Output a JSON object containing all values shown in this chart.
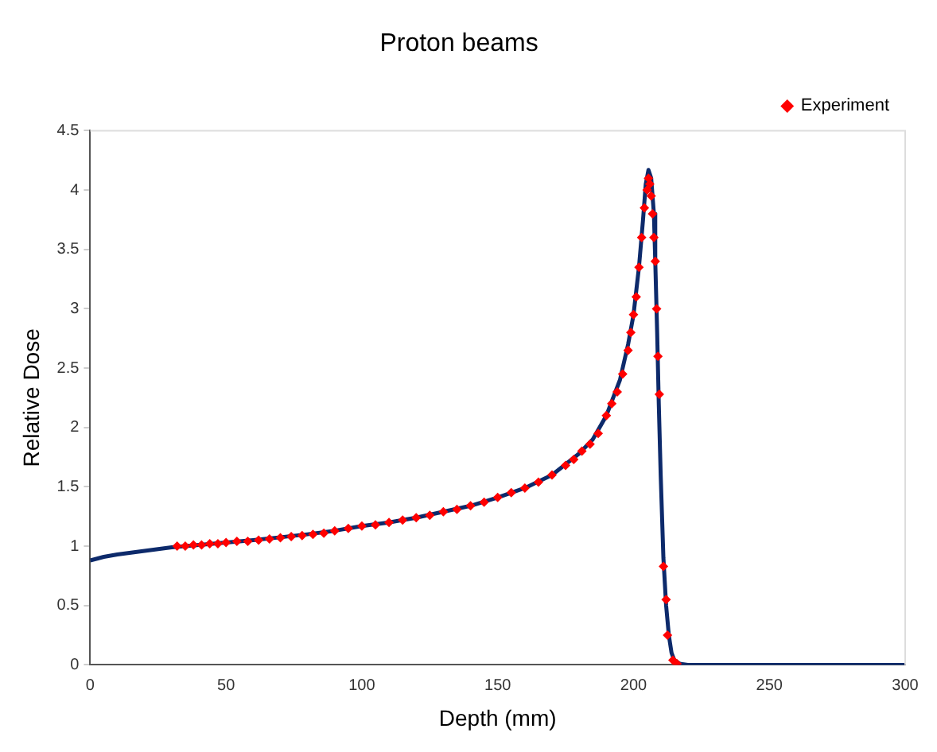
{
  "chart_data": {
    "type": "scatter",
    "title": "Proton beams",
    "xlabel": "Depth (mm)",
    "ylabel": "Relative Dose",
    "xlim": [
      0,
      300
    ],
    "xticks": [
      0,
      50,
      100,
      150,
      200,
      250,
      300
    ],
    "ylim": [
      0,
      4.5
    ],
    "yticks": [
      0,
      0.5,
      1,
      1.5,
      2,
      2.5,
      3,
      3.5,
      4,
      4.5
    ],
    "grid": false,
    "legend": "top right",
    "marker": "diamond",
    "series": [
      {
        "type": "line",
        "color": "#0d2a6b",
        "line_style": "solid",
        "marker": "none",
        "x": [
          0,
          5,
          10,
          20,
          30,
          40,
          50,
          60,
          70,
          80,
          90,
          100,
          110,
          120,
          130,
          140,
          150,
          160,
          170,
          180,
          185,
          190,
          195,
          198,
          200,
          202,
          203.5,
          204.5,
          205.5,
          206.5,
          207.5,
          208,
          208.7,
          209.3,
          210,
          211,
          212,
          213,
          214,
          215,
          217,
          220,
          300
        ],
        "values": [
          0.88,
          0.91,
          0.93,
          0.96,
          0.99,
          1.01,
          1.03,
          1.05,
          1.075,
          1.1,
          1.13,
          1.17,
          1.2,
          1.24,
          1.29,
          1.34,
          1.41,
          1.49,
          1.6,
          1.78,
          1.9,
          2.1,
          2.4,
          2.7,
          2.95,
          3.35,
          3.75,
          4.05,
          4.17,
          4.1,
          3.8,
          3.4,
          2.8,
          2.2,
          1.6,
          0.9,
          0.5,
          0.25,
          0.1,
          0.04,
          0.01,
          0,
          0
        ]
      },
      {
        "name": "Experiment",
        "color": "#ff0000",
        "x": [
          32,
          35,
          38,
          41,
          44,
          47,
          50,
          54,
          58,
          62,
          66,
          70,
          74,
          78,
          82,
          86,
          90,
          95,
          100,
          105,
          110,
          115,
          120,
          125,
          130,
          135,
          140,
          145,
          150,
          155,
          160,
          165,
          170,
          175,
          178,
          181,
          184,
          187,
          190,
          192,
          194,
          196,
          198,
          199,
          200,
          201,
          202,
          203,
          204,
          205,
          205.5,
          206,
          206.5,
          207,
          207.5,
          208,
          208.5,
          209,
          209.5,
          211,
          212,
          212.5,
          214.5,
          216
        ],
        "values": [
          1.0,
          1.0,
          1.01,
          1.01,
          1.02,
          1.02,
          1.03,
          1.04,
          1.04,
          1.05,
          1.06,
          1.07,
          1.08,
          1.09,
          1.1,
          1.11,
          1.13,
          1.15,
          1.17,
          1.18,
          1.2,
          1.22,
          1.24,
          1.26,
          1.29,
          1.31,
          1.34,
          1.37,
          1.41,
          1.45,
          1.49,
          1.54,
          1.6,
          1.68,
          1.73,
          1.8,
          1.86,
          1.95,
          2.1,
          2.2,
          2.3,
          2.45,
          2.65,
          2.8,
          2.95,
          3.1,
          3.35,
          3.6,
          3.85,
          4.0,
          4.1,
          4.05,
          3.95,
          3.8,
          3.6,
          3.4,
          3.0,
          2.6,
          2.28,
          0.83,
          0.55,
          0.25,
          0.04,
          0.01
        ]
      }
    ]
  }
}
